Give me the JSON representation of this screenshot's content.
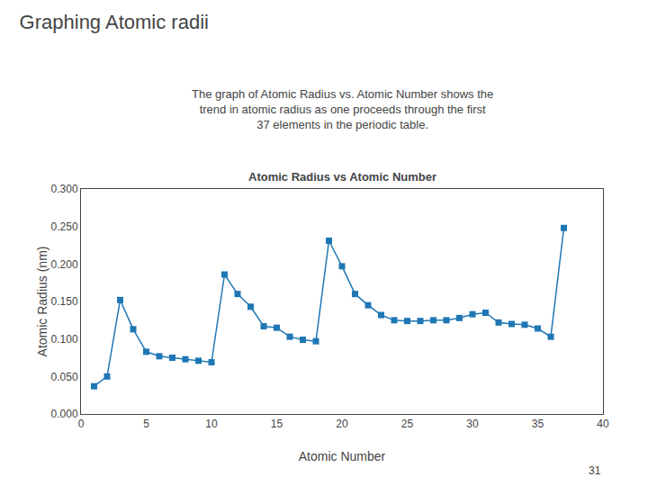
{
  "title": "Graphing Atomic radii",
  "subtitle": [
    "The graph of Atomic Radius vs. Atomic Number shows the",
    "trend in atomic radius as one proceeds through the first",
    "37 elements in the periodic table."
  ],
  "annotations": [
    "31"
  ],
  "chart_data": {
    "type": "line",
    "title": "Atomic Radius vs Atomic Number",
    "xlabel": "Atomic Number",
    "ylabel": "Atomic Radius (nm)",
    "x": [
      1,
      2,
      3,
      4,
      5,
      6,
      7,
      8,
      9,
      10,
      11,
      12,
      13,
      14,
      15,
      16,
      17,
      18,
      19,
      20,
      21,
      22,
      23,
      24,
      25,
      26,
      27,
      28,
      29,
      30,
      31,
      32,
      33,
      34,
      35,
      36,
      37
    ],
    "values": [
      0.037,
      0.05,
      0.152,
      0.113,
      0.083,
      0.077,
      0.075,
      0.073,
      0.071,
      0.069,
      0.186,
      0.16,
      0.143,
      0.117,
      0.115,
      0.103,
      0.099,
      0.097,
      0.231,
      0.197,
      0.16,
      0.145,
      0.132,
      0.125,
      0.124,
      0.124,
      0.125,
      0.125,
      0.128,
      0.133,
      0.135,
      0.122,
      0.12,
      0.119,
      0.114,
      0.103,
      0.248
    ],
    "marker": "square",
    "xlim": [
      0,
      40
    ],
    "ylim": [
      0.0,
      0.3
    ],
    "xticks": [
      0,
      5,
      10,
      15,
      20,
      25,
      30,
      35,
      40
    ],
    "yticks": [
      {
        "value": 0.0,
        "label": "0.000"
      },
      {
        "value": 0.05,
        "label": "0.050"
      },
      {
        "value": 0.1,
        "label": "0.100"
      },
      {
        "value": 0.15,
        "label": "0.150"
      },
      {
        "value": 0.2,
        "label": "0.200"
      },
      {
        "value": 0.25,
        "label": "0.250"
      },
      {
        "value": 0.3,
        "label": "0.300"
      }
    ],
    "grid": false
  }
}
